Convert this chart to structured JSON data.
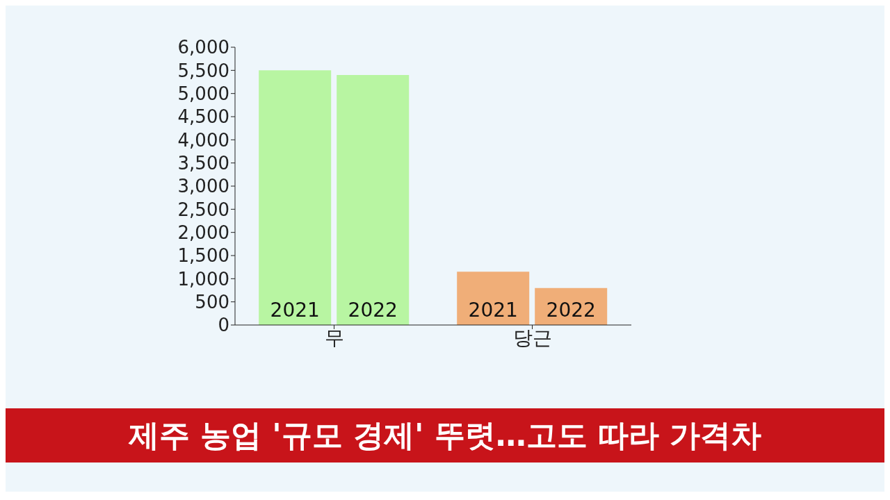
{
  "chart_data": {
    "type": "bar",
    "categories": [
      "무",
      "당근"
    ],
    "series": [
      {
        "name": "2021",
        "colors": [
          "#b8f5a2",
          "#f0ae78"
        ],
        "values": [
          5500,
          1150
        ]
      },
      {
        "name": "2022",
        "colors": [
          "#b8f5a2",
          "#f0ae78"
        ],
        "values": [
          5400,
          800
        ]
      }
    ],
    "ylim": [
      0,
      6000
    ],
    "yticks": [
      {
        "value": 0,
        "label": "0"
      },
      {
        "value": 500,
        "label": "500"
      },
      {
        "value": 1000,
        "label": "1,000"
      },
      {
        "value": 1500,
        "label": "1,500"
      },
      {
        "value": 2000,
        "label": "2,000"
      },
      {
        "value": 2500,
        "label": "2,500"
      },
      {
        "value": 3000,
        "label": "3,000"
      },
      {
        "value": 3500,
        "label": "3,500"
      },
      {
        "value": 4000,
        "label": "4,000"
      },
      {
        "value": 4500,
        "label": "4,500"
      },
      {
        "value": 5000,
        "label": "5,000"
      },
      {
        "value": 5500,
        "label": "5,500"
      },
      {
        "value": 6000,
        "label": "6,000"
      }
    ],
    "grid": false,
    "legend": false,
    "annotations": [
      "제주 농업 '규모 경제' 뚜렷…고도 따라 가격차"
    ]
  }
}
